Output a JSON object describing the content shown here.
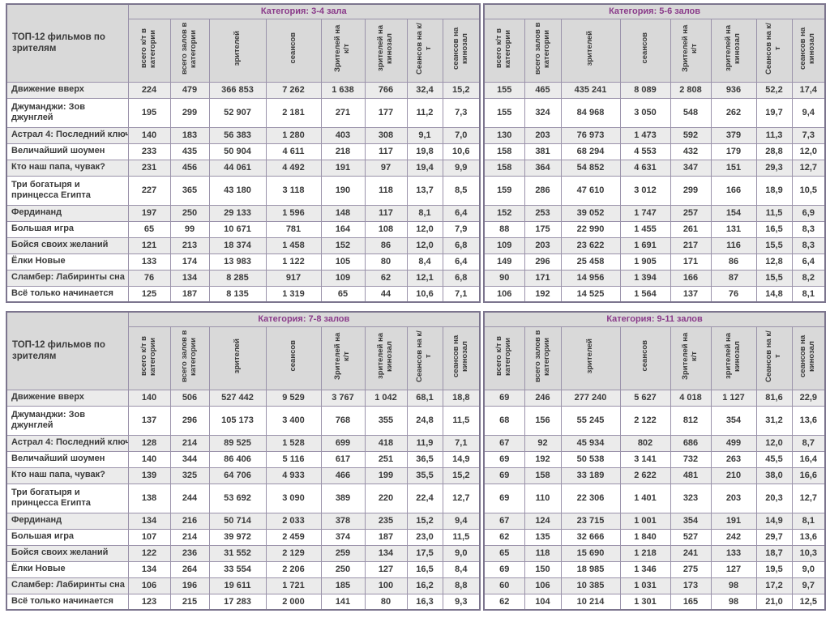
{
  "report": {
    "row_label_header": "ТОП-12 фильмов по зрителям",
    "films": [
      "Движение вверх",
      "Джуманджи: Зов джунглей",
      "Астрал 4: Последний ключ",
      "Величайший шоумен",
      "Кто наш папа, чувак?",
      "Три богатыря и принцесса Египта",
      "Фердинанд",
      "Большая игра",
      "Бойся своих желаний",
      "Ёлки Новые",
      "Сламбер: Лабиринты сна",
      "Всё только начинается"
    ],
    "columns": [
      "всего к/т в категории",
      "всего залов в категории",
      "зрителей",
      "сеансов",
      "Зрителей на к/т",
      "зрителей на кинозал",
      "Сеансов на к/т",
      "сеансов на кинозал"
    ],
    "tall_row_indexes": [
      1,
      5
    ],
    "tables": [
      {
        "category": "Категория: 3-4 зала",
        "has_film_column": true,
        "rows": [
          [
            "224",
            "479",
            "366 853",
            "7 262",
            "1 638",
            "766",
            "32,4",
            "15,2"
          ],
          [
            "195",
            "299",
            "52 907",
            "2 181",
            "271",
            "177",
            "11,2",
            "7,3"
          ],
          [
            "140",
            "183",
            "56 383",
            "1 280",
            "403",
            "308",
            "9,1",
            "7,0"
          ],
          [
            "233",
            "435",
            "50 904",
            "4 611",
            "218",
            "117",
            "19,8",
            "10,6"
          ],
          [
            "231",
            "456",
            "44 061",
            "4 492",
            "191",
            "97",
            "19,4",
            "9,9"
          ],
          [
            "227",
            "365",
            "43 180",
            "3 118",
            "190",
            "118",
            "13,7",
            "8,5"
          ],
          [
            "197",
            "250",
            "29 133",
            "1 596",
            "148",
            "117",
            "8,1",
            "6,4"
          ],
          [
            "65",
            "99",
            "10 671",
            "781",
            "164",
            "108",
            "12,0",
            "7,9"
          ],
          [
            "121",
            "213",
            "18 374",
            "1 458",
            "152",
            "86",
            "12,0",
            "6,8"
          ],
          [
            "133",
            "174",
            "13 983",
            "1 122",
            "105",
            "80",
            "8,4",
            "6,4"
          ],
          [
            "76",
            "134",
            "8 285",
            "917",
            "109",
            "62",
            "12,1",
            "6,8"
          ],
          [
            "125",
            "187",
            "8 135",
            "1 319",
            "65",
            "44",
            "10,6",
            "7,1"
          ]
        ]
      },
      {
        "category": "Категория: 5-6 залов",
        "has_film_column": false,
        "rows": [
          [
            "155",
            "465",
            "435 241",
            "8 089",
            "2 808",
            "936",
            "52,2",
            "17,4"
          ],
          [
            "155",
            "324",
            "84 968",
            "3 050",
            "548",
            "262",
            "19,7",
            "9,4"
          ],
          [
            "130",
            "203",
            "76 973",
            "1 473",
            "592",
            "379",
            "11,3",
            "7,3"
          ],
          [
            "158",
            "381",
            "68 294",
            "4 553",
            "432",
            "179",
            "28,8",
            "12,0"
          ],
          [
            "158",
            "364",
            "54 852",
            "4 631",
            "347",
            "151",
            "29,3",
            "12,7"
          ],
          [
            "159",
            "286",
            "47 610",
            "3 012",
            "299",
            "166",
            "18,9",
            "10,5"
          ],
          [
            "152",
            "253",
            "39 052",
            "1 747",
            "257",
            "154",
            "11,5",
            "6,9"
          ],
          [
            "88",
            "175",
            "22 990",
            "1 455",
            "261",
            "131",
            "16,5",
            "8,3"
          ],
          [
            "109",
            "203",
            "23 622",
            "1 691",
            "217",
            "116",
            "15,5",
            "8,3"
          ],
          [
            "149",
            "296",
            "25 458",
            "1 905",
            "171",
            "86",
            "12,8",
            "6,4"
          ],
          [
            "90",
            "171",
            "14 956",
            "1 394",
            "166",
            "87",
            "15,5",
            "8,2"
          ],
          [
            "106",
            "192",
            "14 525",
            "1 564",
            "137",
            "76",
            "14,8",
            "8,1"
          ]
        ]
      },
      {
        "category": "Категория: 7-8 залов",
        "has_film_column": true,
        "rows": [
          [
            "140",
            "506",
            "527 442",
            "9 529",
            "3 767",
            "1 042",
            "68,1",
            "18,8"
          ],
          [
            "137",
            "296",
            "105 173",
            "3 400",
            "768",
            "355",
            "24,8",
            "11,5"
          ],
          [
            "128",
            "214",
            "89 525",
            "1 528",
            "699",
            "418",
            "11,9",
            "7,1"
          ],
          [
            "140",
            "344",
            "86 406",
            "5 116",
            "617",
            "251",
            "36,5",
            "14,9"
          ],
          [
            "139",
            "325",
            "64 706",
            "4 933",
            "466",
            "199",
            "35,5",
            "15,2"
          ],
          [
            "138",
            "244",
            "53 692",
            "3 090",
            "389",
            "220",
            "22,4",
            "12,7"
          ],
          [
            "134",
            "216",
            "50 714",
            "2 033",
            "378",
            "235",
            "15,2",
            "9,4"
          ],
          [
            "107",
            "214",
            "39 972",
            "2 459",
            "374",
            "187",
            "23,0",
            "11,5"
          ],
          [
            "122",
            "236",
            "31 552",
            "2 129",
            "259",
            "134",
            "17,5",
            "9,0"
          ],
          [
            "134",
            "264",
            "33 554",
            "2 206",
            "250",
            "127",
            "16,5",
            "8,4"
          ],
          [
            "106",
            "196",
            "19 611",
            "1 721",
            "185",
            "100",
            "16,2",
            "8,8"
          ],
          [
            "123",
            "215",
            "17 283",
            "2 000",
            "141",
            "80",
            "16,3",
            "9,3"
          ]
        ]
      },
      {
        "category": "Категория: 9-11 залов",
        "has_film_column": false,
        "rows": [
          [
            "69",
            "246",
            "277 240",
            "5 627",
            "4 018",
            "1 127",
            "81,6",
            "22,9"
          ],
          [
            "68",
            "156",
            "55 245",
            "2 122",
            "812",
            "354",
            "31,2",
            "13,6"
          ],
          [
            "67",
            "92",
            "45 934",
            "802",
            "686",
            "499",
            "12,0",
            "8,7"
          ],
          [
            "69",
            "192",
            "50 538",
            "3 141",
            "732",
            "263",
            "45,5",
            "16,4"
          ],
          [
            "69",
            "158",
            "33 189",
            "2 622",
            "481",
            "210",
            "38,0",
            "16,6"
          ],
          [
            "69",
            "110",
            "22 306",
            "1 401",
            "323",
            "203",
            "20,3",
            "12,7"
          ],
          [
            "67",
            "124",
            "23 715",
            "1 001",
            "354",
            "191",
            "14,9",
            "8,1"
          ],
          [
            "62",
            "135",
            "32 666",
            "1 840",
            "527",
            "242",
            "29,7",
            "13,6"
          ],
          [
            "65",
            "118",
            "15 690",
            "1 218",
            "241",
            "133",
            "18,7",
            "10,3"
          ],
          [
            "69",
            "150",
            "18 985",
            "1 346",
            "275",
            "127",
            "19,5",
            "9,0"
          ],
          [
            "60",
            "106",
            "10 385",
            "1 031",
            "173",
            "98",
            "17,2",
            "9,7"
          ],
          [
            "62",
            "104",
            "10 214",
            "1 301",
            "165",
            "98",
            "21,0",
            "12,5"
          ]
        ]
      }
    ]
  },
  "colors": {
    "category_text": "#8a3b8a",
    "header_bg": "#d9d9d9",
    "row_alt_bg": "#ebebeb",
    "row_bg": "#ffffff",
    "inner_border": "#9a92aa",
    "outer_border": "#7c758e",
    "text": "#3a3a3a"
  }
}
